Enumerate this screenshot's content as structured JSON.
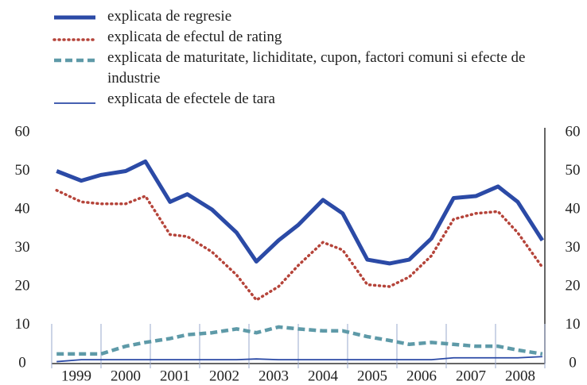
{
  "chart_data": {
    "type": "line",
    "x": [
      1999.1,
      1999.6,
      2000.0,
      2000.5,
      2000.9,
      2001.4,
      2001.75,
      2002.25,
      2002.75,
      2003.15,
      2003.6,
      2004.0,
      2004.5,
      2004.9,
      2005.4,
      2005.85,
      2006.25,
      2006.7,
      2007.15,
      2007.6,
      2008.05,
      2008.45,
      2008.95
    ],
    "xlim": [
      1999,
      2009
    ],
    "xticks": [
      {
        "value": 1999.5,
        "label": "1999"
      },
      {
        "value": 2000.5,
        "label": "2000"
      },
      {
        "value": 2001.5,
        "label": "2001"
      },
      {
        "value": 2002.5,
        "label": "2002"
      },
      {
        "value": 2003.5,
        "label": "2003"
      },
      {
        "value": 2004.5,
        "label": "2004"
      },
      {
        "value": 2005.5,
        "label": "2005"
      },
      {
        "value": 2006.5,
        "label": "2006"
      },
      {
        "value": 2007.5,
        "label": "2007"
      },
      {
        "value": 2008.5,
        "label": "2008"
      }
    ],
    "ylim": [
      0,
      60
    ],
    "yticks": [
      0,
      10,
      20,
      30,
      40,
      50,
      60
    ],
    "series": [
      {
        "name": "explicata de regresie",
        "color": "#2b4aa6",
        "style": "solid-thick",
        "values": [
          50,
          47.5,
          49,
          50,
          52.5,
          42,
          44,
          40,
          34,
          26.5,
          32,
          36,
          42.5,
          39,
          27,
          26,
          27,
          32.5,
          43,
          43.5,
          46,
          42,
          32
        ]
      },
      {
        "name": "explicata de efectul de rating",
        "color": "#b5443a",
        "style": "dotted",
        "values": [
          45,
          42,
          41.5,
          41.5,
          43.5,
          33.5,
          33,
          29,
          23,
          16.5,
          20,
          25.5,
          31.5,
          29.5,
          20.5,
          20,
          22.5,
          28,
          37.5,
          39,
          39.5,
          34,
          25
        ]
      },
      {
        "name": "explicata de maturitate, lichiditate, cupon, factori comuni si efecte de industrie",
        "color": "#5e9aa8",
        "style": "dashed",
        "values": [
          2.5,
          2.5,
          2.5,
          4.5,
          5.5,
          6.5,
          7.5,
          8,
          9,
          8,
          9.5,
          9,
          8.5,
          8.5,
          7,
          6,
          5,
          5.5,
          5,
          4.5,
          4.5,
          3.5,
          2.5
        ]
      },
      {
        "name": "explicata de efectele de tara",
        "color": "#2b4aa6",
        "style": "solid-thin",
        "values": [
          0.5,
          1,
          1,
          1,
          1,
          1,
          1,
          1,
          1,
          1.2,
          1,
          1,
          1,
          1,
          1,
          1,
          1,
          1,
          1.5,
          1.5,
          1.5,
          1.5,
          1.8
        ]
      }
    ]
  }
}
